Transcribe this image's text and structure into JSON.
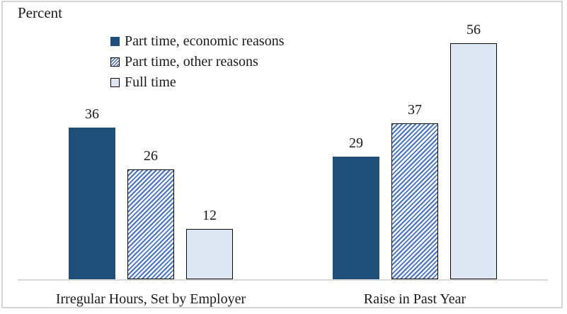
{
  "chart_data": {
    "type": "bar",
    "title": "",
    "ylabel": "Percent",
    "xlabel": "",
    "categories": [
      "Irregular Hours, Set by Employer",
      "Raise in Past Year"
    ],
    "series": [
      {
        "name": "Part time, economic reasons",
        "values": [
          36,
          29
        ],
        "pattern": "solid",
        "fill": "#1F4E79",
        "border": null
      },
      {
        "name": "Part time, other reasons",
        "values": [
          26,
          37
        ],
        "pattern": "hatch",
        "fill": "#4472C4",
        "border": "#0a0a0a"
      },
      {
        "name": "Full time",
        "values": [
          12,
          56
        ],
        "pattern": "solid",
        "fill": "#DCE7F3",
        "border": "#0a0a0a"
      }
    ],
    "ylim": [
      0,
      66
    ],
    "grid": false,
    "data_labels": true,
    "legend_position": "upper-left-inside"
  },
  "colors": {
    "axis_line": "#D9D9D9",
    "frame_border": "#D5D5D5",
    "text": "#1A1A1A",
    "background": "#FFFFFF",
    "hatch_background": "#FFFFFF"
  }
}
